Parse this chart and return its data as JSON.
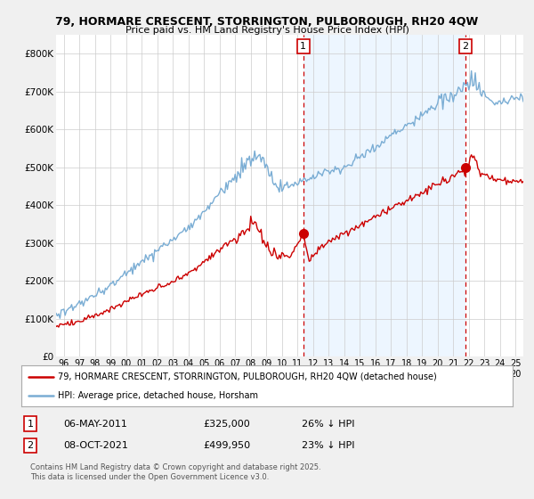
{
  "title1": "79, HORMARE CRESCENT, STORRINGTON, PULBOROUGH, RH20 4QW",
  "title2": "Price paid vs. HM Land Registry's House Price Index (HPI)",
  "background_color": "#f0f0f0",
  "plot_bg": "#ffffff",
  "red_color": "#cc0000",
  "blue_color": "#7aadd4",
  "blue_fill": "#ddeeff",
  "marker1_x": 2011.37,
  "marker1_label": "06-MAY-2011",
  "marker1_price": 325000,
  "marker1_pct": "26% ↓ HPI",
  "marker2_x": 2021.78,
  "marker2_label": "08-OCT-2021",
  "marker2_price": 499950,
  "marker2_pct": "23% ↓ HPI",
  "legend_line1": "79, HORMARE CRESCENT, STORRINGTON, PULBOROUGH, RH20 4QW (detached house)",
  "legend_line2": "HPI: Average price, detached house, Horsham",
  "footer": "Contains HM Land Registry data © Crown copyright and database right 2025.\nThis data is licensed under the Open Government Licence v3.0.",
  "ylim": [
    0,
    850000
  ],
  "yticks": [
    0,
    100000,
    200000,
    300000,
    400000,
    500000,
    600000,
    700000,
    800000
  ],
  "ytick_labels": [
    "£0",
    "£100K",
    "£200K",
    "£300K",
    "£400K",
    "£500K",
    "£600K",
    "£700K",
    "£800K"
  ],
  "xlim_start": 1995.5,
  "xlim_end": 2025.5,
  "xtick_years": [
    1996,
    1997,
    1998,
    1999,
    2000,
    2001,
    2002,
    2003,
    2004,
    2005,
    2006,
    2007,
    2008,
    2009,
    2010,
    2011,
    2012,
    2013,
    2014,
    2015,
    2016,
    2017,
    2018,
    2019,
    2020,
    2021,
    2022,
    2023,
    2024,
    2025
  ]
}
